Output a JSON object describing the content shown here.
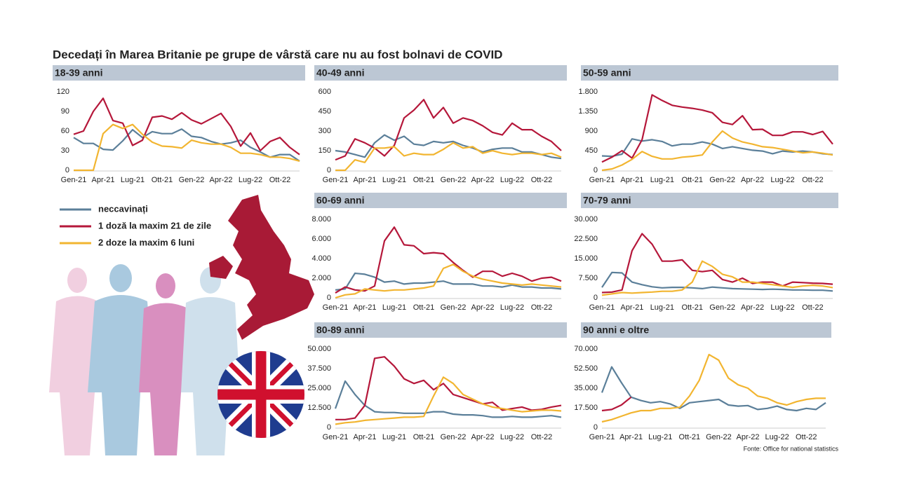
{
  "title": "Decedați în Marea Britanie pe grupe de vârstă care nu au fost bolnavi de COVID",
  "source": "Fonte: Office for national statistics",
  "chart_data": [
    {
      "type": "line",
      "title": "18-39 anni",
      "categories": [
        "Gen-21",
        null,
        null,
        "Apr-21",
        null,
        null,
        "Lug-21",
        null,
        null,
        "Ott-21",
        null,
        null,
        "Gen-22",
        null,
        null,
        "Apr-22",
        null,
        null,
        "Lug-22",
        null,
        null,
        "Ott-22",
        null,
        null
      ],
      "ylim": [
        0,
        120
      ],
      "yticks": [
        0,
        30,
        60,
        90,
        120
      ],
      "grid": false,
      "series": [
        {
          "name": "neccavinați",
          "color": "#5b7f99",
          "values": [
            50,
            41,
            41,
            32,
            31,
            45,
            62,
            50,
            59,
            56,
            56,
            63,
            52,
            50,
            44,
            40,
            42,
            46,
            35,
            28,
            20,
            24,
            24,
            14
          ]
        },
        {
          "name": "1 doză la maxim 21 de zile",
          "color": "#b5173a",
          "values": [
            55,
            60,
            90,
            110,
            76,
            72,
            38,
            46,
            81,
            83,
            78,
            88,
            77,
            71,
            79,
            87,
            67,
            37,
            57,
            30,
            44,
            50,
            35,
            24
          ]
        },
        {
          "name": "2 doze la maxim 6 luni",
          "color": "#f2b530",
          "values": [
            0,
            0,
            0,
            56,
            70,
            64,
            70,
            55,
            43,
            37,
            36,
            34,
            46,
            42,
            40,
            40,
            35,
            26,
            26,
            24,
            20,
            20,
            18,
            14
          ]
        }
      ]
    },
    {
      "type": "line",
      "title": "40-49 anni",
      "categories": [
        "Gen-21",
        null,
        null,
        "Apr-21",
        null,
        null,
        "Lug-21",
        null,
        null,
        "Ott-21",
        null,
        null,
        "Gen-22",
        null,
        null,
        "Apr-22",
        null,
        null,
        "Lug-22",
        null,
        null,
        "Ott-22",
        null,
        null
      ],
      "ylim": [
        0,
        600
      ],
      "yticks": [
        0,
        150,
        300,
        450,
        600
      ],
      "grid": false,
      "series": [
        {
          "color": "#5b7f99",
          "values": [
            150,
            140,
            120,
            100,
            210,
            270,
            230,
            260,
            200,
            190,
            220,
            210,
            220,
            190,
            170,
            140,
            160,
            170,
            170,
            140,
            140,
            120,
            100,
            90
          ]
        },
        {
          "color": "#b5173a",
          "values": [
            80,
            110,
            240,
            210,
            170,
            110,
            190,
            400,
            460,
            540,
            400,
            480,
            360,
            400,
            380,
            340,
            290,
            270,
            360,
            310,
            310,
            260,
            220,
            150
          ]
        },
        {
          "color": "#f2b530",
          "values": [
            0,
            0,
            80,
            60,
            170,
            170,
            180,
            110,
            130,
            120,
            120,
            160,
            210,
            170,
            180,
            130,
            150,
            130,
            120,
            130,
            130,
            120,
            130,
            100
          ]
        }
      ]
    },
    {
      "type": "line",
      "title": "50-59 anni",
      "categories": [
        "Gen-21",
        null,
        null,
        "Apr-21",
        null,
        null,
        "Lug-21",
        null,
        null,
        "Ott-21",
        null,
        null,
        "Gen-22",
        null,
        null,
        "Apr-22",
        null,
        null,
        "Lug-22",
        null,
        null,
        "Ott-22",
        null,
        null
      ],
      "ylim": [
        0,
        1800
      ],
      "yticks": [
        0,
        450,
        900,
        {
          "value": 1350,
          "label": "1.350"
        },
        {
          "value": 1800,
          "label": "1.800"
        }
      ],
      "grid": false,
      "series": [
        {
          "color": "#5b7f99",
          "values": [
            330,
            320,
            370,
            720,
            670,
            700,
            660,
            560,
            600,
            600,
            650,
            600,
            500,
            540,
            500,
            460,
            440,
            380,
            440,
            420,
            440,
            420,
            380,
            360
          ]
        },
        {
          "color": "#b5173a",
          "values": [
            190,
            300,
            450,
            280,
            700,
            1730,
            1600,
            1490,
            1450,
            1420,
            1380,
            1320,
            1100,
            1050,
            1250,
            930,
            940,
            800,
            800,
            880,
            880,
            820,
            890,
            600
          ]
        },
        {
          "color": "#f2b530",
          "values": [
            0,
            30,
            120,
            250,
            430,
            320,
            260,
            260,
            300,
            320,
            350,
            650,
            900,
            740,
            650,
            600,
            540,
            520,
            480,
            440,
            400,
            420,
            390,
            350
          ]
        }
      ]
    },
    {
      "type": "line",
      "title": "60-69 anni",
      "categories": [
        "Gen-21",
        null,
        null,
        "Apr-21",
        null,
        null,
        "Lug-21",
        null,
        null,
        "Ott-21",
        null,
        null,
        "Gen-22",
        null,
        null,
        "Apr-22",
        null,
        null,
        "Lug-22",
        null,
        null,
        "Ott-22",
        null,
        null
      ],
      "ylim": [
        0,
        8000
      ],
      "yticks": [
        0,
        {
          "value": 2000,
          "label": "2.000"
        },
        {
          "value": 4000,
          "label": "4.000"
        },
        {
          "value": 6000,
          "label": "6.000"
        },
        {
          "value": 8000,
          "label": "8.000"
        }
      ],
      "grid": false,
      "series": [
        {
          "color": "#5b7f99",
          "values": [
            800,
            900,
            2500,
            2400,
            2100,
            1600,
            1700,
            1400,
            1500,
            1500,
            1600,
            1700,
            1400,
            1400,
            1400,
            1200,
            1200,
            1100,
            1300,
            1100,
            1100,
            1000,
            1000,
            900
          ]
        },
        {
          "color": "#b5173a",
          "values": [
            500,
            1100,
            800,
            700,
            1200,
            5800,
            7200,
            5400,
            5300,
            4500,
            4600,
            4500,
            3600,
            2800,
            2100,
            2700,
            2700,
            2200,
            2500,
            2200,
            1700,
            2000,
            2100,
            1700
          ]
        },
        {
          "color": "#f2b530",
          "values": [
            0,
            300,
            400,
            900,
            800,
            700,
            800,
            800,
            900,
            1000,
            1200,
            3000,
            3400,
            2700,
            2200,
            1900,
            1700,
            1500,
            1400,
            1300,
            1400,
            1300,
            1200,
            1100
          ]
        }
      ]
    },
    {
      "type": "line",
      "title": "70-79 anni",
      "categories": [
        "Gen-21",
        null,
        null,
        "Apr-21",
        null,
        null,
        "Lug-21",
        null,
        null,
        "Ott-21",
        null,
        null,
        "Gen-22",
        null,
        null,
        "Apr-22",
        null,
        null,
        "Lug-22",
        null,
        null,
        "Ott-22",
        null,
        null
      ],
      "ylim": [
        0,
        30000
      ],
      "yticks": [
        0,
        {
          "value": 7500,
          "label": "7.500"
        },
        {
          "value": 15000,
          "label": "15.000"
        },
        {
          "value": 22500,
          "label": "22.500"
        },
        {
          "value": 30000,
          "label": "30.000"
        }
      ],
      "grid": false,
      "series": [
        {
          "color": "#5b7f99",
          "values": [
            4000,
            9700,
            9500,
            6000,
            5000,
            4200,
            3800,
            4000,
            4000,
            3800,
            3500,
            4100,
            3800,
            3500,
            3400,
            3300,
            3200,
            3300,
            3200,
            3000,
            3000,
            2900,
            2900,
            2600
          ]
        },
        {
          "color": "#b5173a",
          "values": [
            2000,
            2200,
            3000,
            18000,
            24500,
            20500,
            14000,
            14000,
            14500,
            10500,
            10000,
            10500,
            7000,
            6000,
            7500,
            5500,
            6000,
            6000,
            4500,
            6000,
            5800,
            5600,
            5500,
            5200
          ]
        },
        {
          "color": "#f2b530",
          "values": [
            1000,
            1500,
            2000,
            1800,
            2000,
            2200,
            2500,
            2500,
            3000,
            6000,
            14000,
            12000,
            9000,
            8000,
            6000,
            6000,
            5500,
            5000,
            4500,
            4000,
            4500,
            4800,
            4500,
            3900
          ]
        }
      ]
    },
    {
      "type": "line",
      "title": "80-89 anni",
      "categories": [
        "Gen-21",
        null,
        null,
        "Apr-21",
        null,
        null,
        "Lug-21",
        null,
        null,
        "Ott-21",
        null,
        null,
        "Gen-22",
        null,
        null,
        "Apr-22",
        null,
        null,
        "Lug-22",
        null,
        null,
        "Ott-22",
        null,
        null
      ],
      "ylim": [
        0,
        50000
      ],
      "yticks": [
        0,
        {
          "value": 12500,
          "label": "12.500"
        },
        {
          "value": 25000,
          "label": "25.000"
        },
        {
          "value": 37500,
          "label": "37.500"
        },
        {
          "value": 50000,
          "label": "50.000"
        }
      ],
      "grid": false,
      "series": [
        {
          "color": "#5b7f99",
          "values": [
            12000,
            29500,
            21000,
            14000,
            10000,
            9500,
            9500,
            9000,
            9000,
            9000,
            10000,
            10000,
            8500,
            8000,
            8000,
            7500,
            6500,
            6500,
            7000,
            6500,
            6500,
            7000,
            7500,
            6500
          ]
        },
        {
          "color": "#b5173a",
          "values": [
            5000,
            5000,
            6000,
            14000,
            44000,
            45000,
            39000,
            31000,
            28000,
            30000,
            24000,
            28000,
            21000,
            19000,
            17000,
            15000,
            16000,
            11000,
            12000,
            13000,
            11000,
            11500,
            13000,
            14000
          ]
        },
        {
          "color": "#f2b530",
          "values": [
            2000,
            3000,
            3500,
            4500,
            5000,
            5500,
            6000,
            6500,
            6500,
            7000,
            20000,
            32000,
            28000,
            21000,
            18000,
            15000,
            13000,
            12000,
            11000,
            10000,
            10500,
            11000,
            11000,
            10500
          ]
        }
      ]
    },
    {
      "type": "line",
      "title": "90 anni e oltre",
      "categories": [
        "Gen-21",
        null,
        null,
        "Apr-21",
        null,
        null,
        "Lug-21",
        null,
        null,
        "Ott-21",
        null,
        null,
        "Gen-22",
        null,
        null,
        "Apr-22",
        null,
        null,
        "Lug-22",
        null,
        null,
        "Ott-22",
        null,
        null
      ],
      "ylim": [
        0,
        70000
      ],
      "yticks": [
        0,
        {
          "value": 17500,
          "label": "17.500"
        },
        {
          "value": 35000,
          "label": "35.000"
        },
        {
          "value": 52500,
          "label": "52.500"
        },
        {
          "value": 70000,
          "label": "70.000"
        }
      ],
      "grid": false,
      "series": [
        {
          "color": "#5b7f99",
          "values": [
            31000,
            54000,
            40000,
            27000,
            24000,
            22000,
            23000,
            21000,
            17000,
            22000,
            23000,
            24000,
            25000,
            20000,
            19000,
            19500,
            16000,
            17000,
            19000,
            16000,
            15000,
            17000,
            16000,
            22000
          ]
        },
        {
          "color": "#b5173a",
          "values": [
            15000,
            16000,
            20000,
            27000,
            null,
            null,
            null,
            null,
            null,
            null,
            null,
            null,
            null,
            null,
            null,
            null,
            null,
            null,
            null,
            null,
            null,
            null,
            null,
            null
          ]
        },
        {
          "color": "#f2b530",
          "values": [
            5000,
            7000,
            10000,
            13000,
            15000,
            15000,
            17000,
            17000,
            18000,
            28000,
            42000,
            65000,
            60000,
            44000,
            38000,
            35000,
            28000,
            26000,
            22000,
            20000,
            23000,
            25000,
            26000,
            26000
          ]
        }
      ]
    }
  ]
}
